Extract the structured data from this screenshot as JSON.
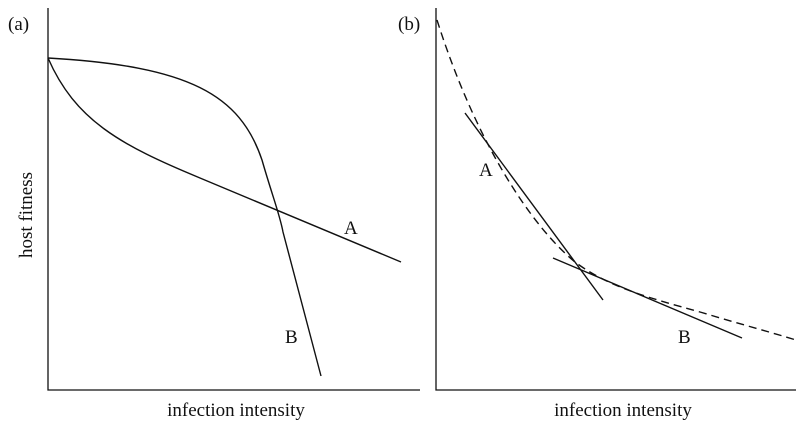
{
  "y_label": "host fitness",
  "panels": [
    {
      "label": "(a)",
      "x_label": "infection intensity",
      "curves": [
        "A",
        "B"
      ]
    },
    {
      "label": "(b)",
      "x_label": "infection intensity",
      "curves": [
        "A",
        "B"
      ]
    }
  ]
}
